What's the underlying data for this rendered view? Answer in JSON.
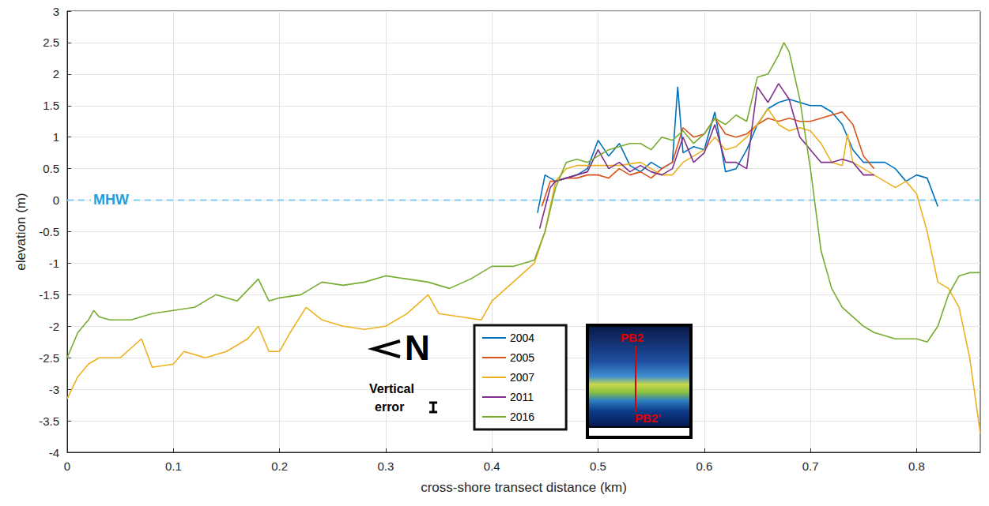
{
  "chart_data": {
    "type": "line",
    "x_label": "cross-shore transect distance (km)",
    "y_label": "elevation (m)",
    "xlim": [
      0,
      0.86
    ],
    "xticks": [
      0,
      0.1,
      0.2,
      0.3,
      0.4,
      0.5,
      0.6,
      0.7,
      0.8
    ],
    "ylim": [
      -4,
      3
    ],
    "yticks": [
      -4,
      -3.5,
      -3,
      -2.5,
      -2,
      -1.5,
      -1,
      -0.5,
      0,
      0.5,
      1,
      1.5,
      2,
      2.5,
      3
    ],
    "grid": true,
    "legend": "lower center",
    "reference_line": {
      "label": "MHW",
      "value": 0,
      "color": "#7fcdee"
    },
    "annotations": {
      "north": "N",
      "vertical_error_label": "Vertical error",
      "vertical_error": 0.15,
      "inset_top": "PB2",
      "inset_bottom": "PB2'"
    },
    "series": [
      {
        "name": "2004",
        "color": "#0072bd",
        "x": [
          0.443,
          0.45,
          0.46,
          0.47,
          0.48,
          0.49,
          0.5,
          0.51,
          0.52,
          0.53,
          0.54,
          0.55,
          0.56,
          0.57,
          0.575,
          0.58,
          0.59,
          0.6,
          0.61,
          0.62,
          0.63,
          0.64,
          0.65,
          0.66,
          0.67,
          0.68,
          0.69,
          0.7,
          0.71,
          0.72,
          0.73,
          0.74,
          0.75,
          0.76,
          0.77,
          0.78,
          0.79,
          0.8,
          0.81,
          0.82
        ],
        "values": [
          -0.2,
          0.4,
          0.3,
          0.35,
          0.4,
          0.5,
          0.95,
          0.7,
          0.9,
          0.55,
          0.45,
          0.6,
          0.5,
          0.6,
          1.8,
          0.75,
          0.85,
          0.8,
          1.4,
          0.45,
          0.5,
          0.8,
          1.2,
          1.45,
          1.55,
          1.6,
          1.55,
          1.5,
          1.5,
          1.4,
          1.2,
          0.8,
          0.6,
          0.6,
          0.6,
          0.5,
          0.3,
          0.4,
          0.35,
          -0.1
        ]
      },
      {
        "name": "2005",
        "color": "#d95319",
        "x": [
          0.447,
          0.455,
          0.46,
          0.47,
          0.48,
          0.49,
          0.5,
          0.51,
          0.52,
          0.53,
          0.54,
          0.55,
          0.56,
          0.57,
          0.58,
          0.59,
          0.6,
          0.61,
          0.62,
          0.63,
          0.64,
          0.65,
          0.66,
          0.67,
          0.68,
          0.69,
          0.7,
          0.71,
          0.72,
          0.73,
          0.74,
          0.75,
          0.76
        ],
        "values": [
          -0.1,
          0.3,
          0.3,
          0.35,
          0.35,
          0.4,
          0.4,
          0.35,
          0.5,
          0.4,
          0.45,
          0.35,
          0.5,
          0.6,
          1.15,
          1.0,
          1.05,
          1.3,
          1.05,
          1.0,
          1.05,
          1.2,
          1.3,
          1.25,
          1.3,
          1.25,
          1.25,
          1.3,
          1.35,
          1.4,
          1.2,
          0.7,
          0.5
        ]
      },
      {
        "name": "2007",
        "color": "#edb120",
        "x": [
          0,
          0.01,
          0.02,
          0.03,
          0.05,
          0.07,
          0.08,
          0.1,
          0.11,
          0.13,
          0.15,
          0.17,
          0.18,
          0.19,
          0.2,
          0.21,
          0.225,
          0.24,
          0.26,
          0.28,
          0.3,
          0.32,
          0.34,
          0.35,
          0.37,
          0.39,
          0.4,
          0.42,
          0.44,
          0.45,
          0.46,
          0.47,
          0.48,
          0.5,
          0.52,
          0.54,
          0.55,
          0.56,
          0.57,
          0.58,
          0.6,
          0.61,
          0.62,
          0.63,
          0.64,
          0.65,
          0.66,
          0.67,
          0.68,
          0.69,
          0.7,
          0.71,
          0.72,
          0.73,
          0.735,
          0.74,
          0.76,
          0.78,
          0.79,
          0.8,
          0.81,
          0.82,
          0.83,
          0.84,
          0.85,
          0.86
        ],
        "values": [
          -3.15,
          -2.8,
          -2.6,
          -2.5,
          -2.5,
          -2.2,
          -2.65,
          -2.6,
          -2.4,
          -2.5,
          -2.4,
          -2.2,
          -2.0,
          -2.4,
          -2.4,
          -2.1,
          -1.7,
          -1.9,
          -2.0,
          -2.05,
          -2.0,
          -1.8,
          -1.5,
          -1.8,
          -1.85,
          -1.9,
          -1.6,
          -1.3,
          -1.0,
          -0.5,
          0.3,
          0.5,
          0.55,
          0.55,
          0.55,
          0.6,
          0.5,
          0.4,
          0.4,
          0.6,
          0.8,
          1.0,
          0.8,
          0.85,
          1.0,
          1.2,
          1.45,
          1.2,
          1.1,
          1.15,
          1.1,
          0.9,
          0.6,
          0.55,
          1.05,
          0.6,
          0.4,
          0.2,
          0.3,
          0.1,
          -0.5,
          -1.3,
          -1.4,
          -1.7,
          -2.5,
          -3.7
        ]
      },
      {
        "name": "2011",
        "color": "#7e2f8e",
        "x": [
          0.445,
          0.455,
          0.46,
          0.47,
          0.48,
          0.49,
          0.5,
          0.51,
          0.52,
          0.53,
          0.54,
          0.55,
          0.56,
          0.57,
          0.58,
          0.59,
          0.6,
          0.61,
          0.62,
          0.63,
          0.64,
          0.65,
          0.66,
          0.67,
          0.68,
          0.69,
          0.7,
          0.71,
          0.72,
          0.73,
          0.74,
          0.75,
          0.76
        ],
        "values": [
          -0.45,
          0.2,
          0.3,
          0.35,
          0.4,
          0.45,
          0.8,
          0.5,
          0.6,
          0.45,
          0.55,
          0.45,
          0.4,
          0.5,
          1.0,
          0.6,
          0.75,
          1.2,
          0.6,
          0.6,
          0.5,
          1.8,
          1.55,
          1.85,
          1.6,
          1.0,
          0.8,
          0.6,
          0.6,
          0.65,
          0.6,
          0.4,
          0.4
        ]
      },
      {
        "name": "2016",
        "color": "#77ac30",
        "x": [
          0,
          0.01,
          0.02,
          0.025,
          0.03,
          0.04,
          0.06,
          0.08,
          0.1,
          0.12,
          0.14,
          0.16,
          0.18,
          0.19,
          0.2,
          0.22,
          0.24,
          0.26,
          0.28,
          0.3,
          0.32,
          0.34,
          0.36,
          0.38,
          0.4,
          0.42,
          0.44,
          0.45,
          0.46,
          0.47,
          0.48,
          0.49,
          0.5,
          0.51,
          0.52,
          0.53,
          0.54,
          0.55,
          0.56,
          0.57,
          0.58,
          0.59,
          0.6,
          0.61,
          0.62,
          0.63,
          0.64,
          0.65,
          0.66,
          0.67,
          0.675,
          0.68,
          0.69,
          0.7,
          0.71,
          0.72,
          0.73,
          0.74,
          0.75,
          0.76,
          0.78,
          0.8,
          0.81,
          0.82,
          0.83,
          0.84,
          0.85,
          0.86
        ],
        "values": [
          -2.5,
          -2.1,
          -1.9,
          -1.75,
          -1.85,
          -1.9,
          -1.9,
          -1.8,
          -1.75,
          -1.7,
          -1.5,
          -1.6,
          -1.25,
          -1.6,
          -1.55,
          -1.5,
          -1.3,
          -1.35,
          -1.3,
          -1.2,
          -1.25,
          -1.3,
          -1.4,
          -1.25,
          -1.05,
          -1.05,
          -0.95,
          -0.5,
          0.2,
          0.6,
          0.65,
          0.6,
          0.7,
          0.8,
          0.85,
          0.9,
          0.9,
          0.8,
          1.0,
          0.95,
          1.1,
          0.9,
          1.05,
          1.3,
          1.2,
          1.35,
          1.25,
          1.95,
          2.0,
          2.3,
          2.5,
          2.35,
          1.6,
          0.5,
          -0.8,
          -1.4,
          -1.7,
          -1.85,
          -2.0,
          -2.1,
          -2.2,
          -2.2,
          -2.25,
          -2.0,
          -1.5,
          -1.2,
          -1.15,
          -1.15
        ]
      }
    ]
  }
}
